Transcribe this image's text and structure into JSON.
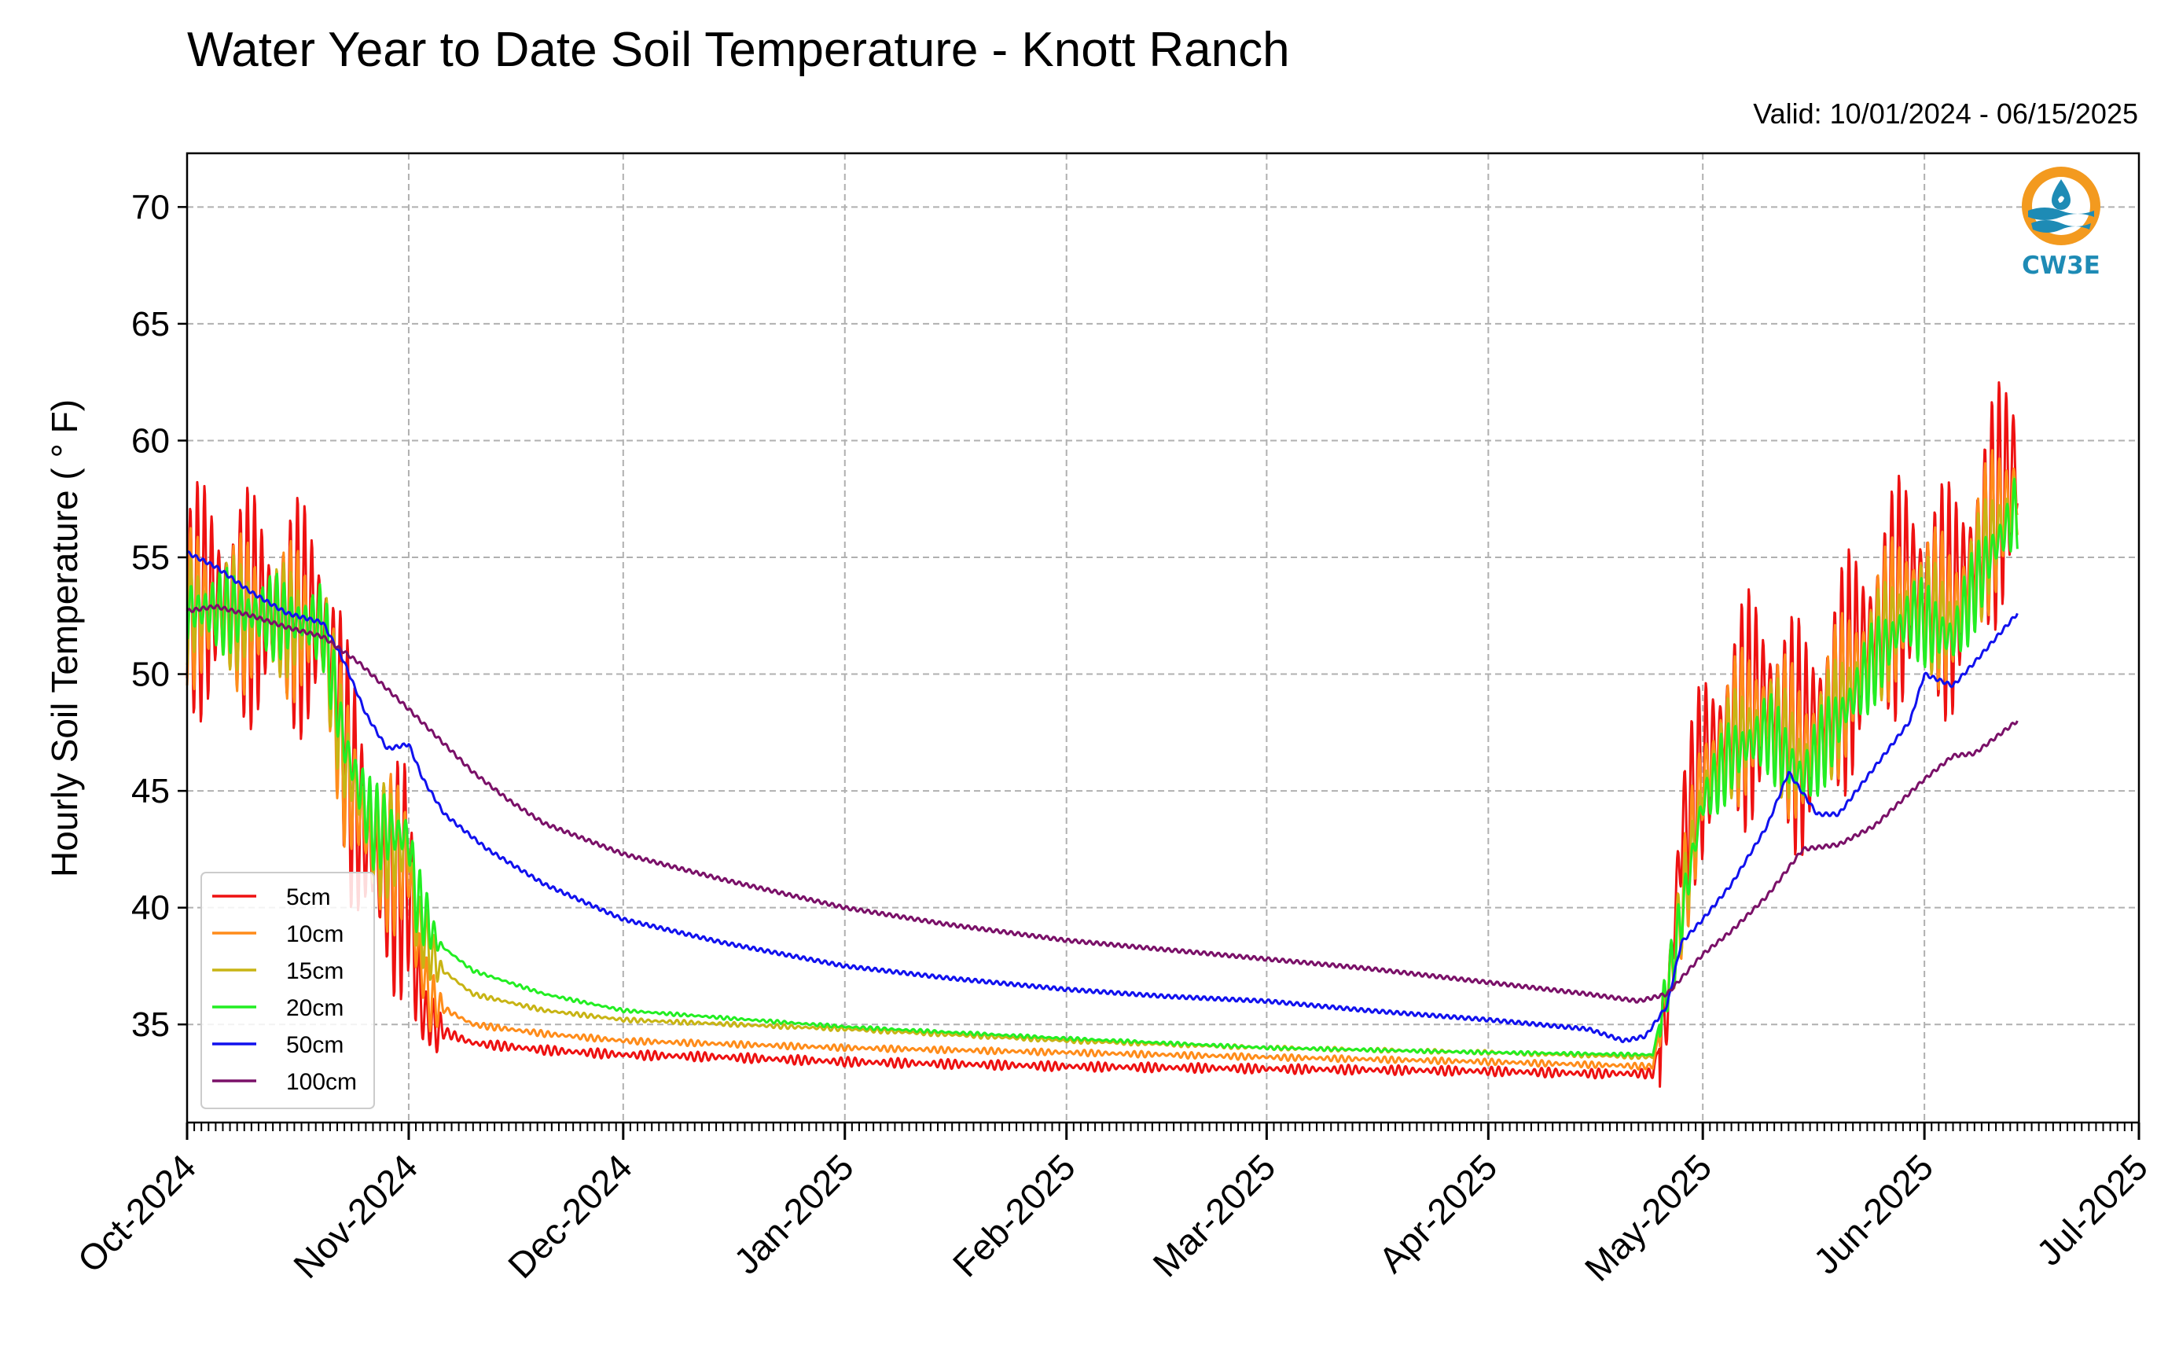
{
  "chart_data": {
    "type": "line",
    "title": "Water Year to Date Soil Temperature - Knott Ranch",
    "subtitle": "Valid: 10/01/2024 - 06/15/2025",
    "ylabel": "Hourly Soil Temperature ( ° F)",
    "xlabel": "",
    "ylim": [
      30.8,
      72.3
    ],
    "xlim": [
      "2024-10-01",
      "2025-07-01"
    ],
    "x_ticks": [
      "Oct-2024",
      "Nov-2024",
      "Dec-2024",
      "Jan-2025",
      "Feb-2025",
      "Mar-2025",
      "Apr-2025",
      "May-2025",
      "Jun-2025",
      "Jul-2025"
    ],
    "y_ticks": [
      35,
      40,
      45,
      50,
      55,
      60,
      65,
      70
    ],
    "grid": true,
    "legend_position": "lower-left",
    "logo_text": "CW3E",
    "series": [
      {
        "name": "5cm",
        "color": "#ee1111",
        "points": [
          [
            "2024-10-01",
            53.0
          ],
          [
            "2024-10-05",
            53.3
          ],
          [
            "2024-10-10",
            52.8
          ],
          [
            "2024-10-15",
            52.5
          ],
          [
            "2024-10-20",
            52.2
          ],
          [
            "2024-10-22",
            49.5
          ],
          [
            "2024-10-24",
            45.0
          ],
          [
            "2024-10-26",
            43.0
          ],
          [
            "2024-10-28",
            41.5
          ],
          [
            "2024-10-30",
            41.0
          ],
          [
            "2024-11-01",
            41.5
          ],
          [
            "2024-11-02",
            37.5
          ],
          [
            "2024-11-03",
            35.5
          ],
          [
            "2024-11-05",
            34.8
          ],
          [
            "2024-11-10",
            34.2
          ],
          [
            "2024-11-20",
            33.9
          ],
          [
            "2024-12-01",
            33.7
          ],
          [
            "2024-12-15",
            33.6
          ],
          [
            "2025-01-01",
            33.4
          ],
          [
            "2025-02-01",
            33.2
          ],
          [
            "2025-03-01",
            33.1
          ],
          [
            "2025-04-01",
            33.0
          ],
          [
            "2025-04-15",
            32.9
          ],
          [
            "2025-04-24",
            32.9
          ],
          [
            "2025-04-26",
            35.5
          ],
          [
            "2025-04-28",
            43.0
          ],
          [
            "2025-05-01",
            46.0
          ],
          [
            "2025-05-05",
            48.0
          ],
          [
            "2025-05-10",
            49.0
          ],
          [
            "2025-05-15",
            47.0
          ],
          [
            "2025-05-20",
            49.5
          ],
          [
            "2025-05-25",
            52.0
          ],
          [
            "2025-05-30",
            54.0
          ],
          [
            "2025-06-05",
            53.0
          ],
          [
            "2025-06-10",
            56.5
          ],
          [
            "2025-06-14",
            59.0
          ]
        ],
        "swing": 10.5
      },
      {
        "name": "10cm",
        "color": "#ff8c1a",
        "points": [
          [
            "2024-10-01",
            52.8
          ],
          [
            "2024-10-10",
            52.5
          ],
          [
            "2024-10-20",
            52.0
          ],
          [
            "2024-10-23",
            46.0
          ],
          [
            "2024-10-27",
            42.5
          ],
          [
            "2024-11-01",
            42.0
          ],
          [
            "2024-11-02",
            38.5
          ],
          [
            "2024-11-04",
            36.0
          ],
          [
            "2024-11-10",
            35.0
          ],
          [
            "2024-11-20",
            34.6
          ],
          [
            "2024-12-01",
            34.3
          ],
          [
            "2025-01-01",
            34.0
          ],
          [
            "2025-02-01",
            33.8
          ],
          [
            "2025-03-01",
            33.6
          ],
          [
            "2025-04-01",
            33.4
          ],
          [
            "2025-04-24",
            33.2
          ],
          [
            "2025-04-27",
            38.0
          ],
          [
            "2025-05-01",
            45.5
          ],
          [
            "2025-05-05",
            47.5
          ],
          [
            "2025-05-10",
            48.5
          ],
          [
            "2025-05-15",
            46.5
          ],
          [
            "2025-05-20",
            49.0
          ],
          [
            "2025-05-25",
            51.5
          ],
          [
            "2025-05-30",
            53.5
          ],
          [
            "2025-06-05",
            52.5
          ],
          [
            "2025-06-10",
            56.0
          ],
          [
            "2025-06-14",
            58.0
          ]
        ],
        "swing": 7.0
      },
      {
        "name": "15cm",
        "color": "#c8b414",
        "points": [
          [
            "2024-10-01",
            52.8
          ],
          [
            "2024-10-10",
            52.5
          ],
          [
            "2024-10-20",
            52.0
          ],
          [
            "2024-10-23",
            46.5
          ],
          [
            "2024-10-27",
            43.0
          ],
          [
            "2024-11-01",
            42.5
          ],
          [
            "2024-11-02",
            39.5
          ],
          [
            "2024-11-05",
            37.5
          ],
          [
            "2024-11-10",
            36.3
          ],
          [
            "2024-11-20",
            35.6
          ],
          [
            "2024-12-01",
            35.2
          ],
          [
            "2025-01-01",
            34.8
          ],
          [
            "2025-02-01",
            34.3
          ],
          [
            "2025-03-01",
            34.0
          ],
          [
            "2025-04-01",
            33.8
          ],
          [
            "2025-04-24",
            33.6
          ],
          [
            "2025-04-27",
            38.0
          ],
          [
            "2025-05-01",
            45.0
          ],
          [
            "2025-05-05",
            47.0
          ],
          [
            "2025-05-10",
            48.0
          ],
          [
            "2025-05-15",
            46.0
          ],
          [
            "2025-05-20",
            48.5
          ],
          [
            "2025-05-25",
            51.0
          ],
          [
            "2025-05-30",
            53.0
          ],
          [
            "2025-06-05",
            52.0
          ],
          [
            "2025-06-10",
            55.5
          ],
          [
            "2025-06-14",
            57.5
          ]
        ],
        "swing": 5.0
      },
      {
        "name": "20cm",
        "color": "#22ee22",
        "points": [
          [
            "2024-10-01",
            52.8
          ],
          [
            "2024-10-10",
            52.6
          ],
          [
            "2024-10-20",
            52.1
          ],
          [
            "2024-10-23",
            47.0
          ],
          [
            "2024-10-27",
            43.5
          ],
          [
            "2024-11-01",
            43.0
          ],
          [
            "2024-11-02",
            40.5
          ],
          [
            "2024-11-05",
            38.5
          ],
          [
            "2024-11-10",
            37.3
          ],
          [
            "2024-11-20",
            36.3
          ],
          [
            "2024-12-01",
            35.6
          ],
          [
            "2025-01-01",
            34.9
          ],
          [
            "2025-02-01",
            34.4
          ],
          [
            "2025-03-01",
            34.0
          ],
          [
            "2025-04-01",
            33.8
          ],
          [
            "2025-04-24",
            33.7
          ],
          [
            "2025-04-27",
            38.0
          ],
          [
            "2025-05-01",
            44.5
          ],
          [
            "2025-05-05",
            46.5
          ],
          [
            "2025-05-10",
            47.5
          ],
          [
            "2025-05-15",
            45.5
          ],
          [
            "2025-05-20",
            48.0
          ],
          [
            "2025-05-25",
            50.5
          ],
          [
            "2025-05-30",
            52.5
          ],
          [
            "2025-06-05",
            51.5
          ],
          [
            "2025-06-10",
            55.0
          ],
          [
            "2025-06-14",
            57.0
          ]
        ],
        "swing": 3.8
      },
      {
        "name": "50cm",
        "color": "#1111ee",
        "points": [
          [
            "2024-10-01",
            55.2
          ],
          [
            "2024-10-05",
            54.6
          ],
          [
            "2024-10-10",
            53.5
          ],
          [
            "2024-10-15",
            52.6
          ],
          [
            "2024-10-20",
            52.2
          ],
          [
            "2024-10-23",
            50.5
          ],
          [
            "2024-10-26",
            48.3
          ],
          [
            "2024-10-29",
            46.8
          ],
          [
            "2024-11-01",
            47.0
          ],
          [
            "2024-11-03",
            45.5
          ],
          [
            "2024-11-06",
            44.0
          ],
          [
            "2024-11-12",
            42.5
          ],
          [
            "2024-11-20",
            41.0
          ],
          [
            "2024-12-01",
            39.5
          ],
          [
            "2024-12-15",
            38.5
          ],
          [
            "2025-01-01",
            37.5
          ],
          [
            "2025-01-15",
            37.0
          ],
          [
            "2025-02-01",
            36.5
          ],
          [
            "2025-02-15",
            36.2
          ],
          [
            "2025-03-01",
            36.0
          ],
          [
            "2025-03-15",
            35.6
          ],
          [
            "2025-04-01",
            35.2
          ],
          [
            "2025-04-15",
            34.8
          ],
          [
            "2025-04-20",
            34.3
          ],
          [
            "2025-04-23",
            34.5
          ],
          [
            "2025-04-26",
            35.8
          ],
          [
            "2025-04-28",
            38.5
          ],
          [
            "2025-05-01",
            39.5
          ],
          [
            "2025-05-05",
            41.0
          ],
          [
            "2025-05-10",
            43.5
          ],
          [
            "2025-05-13",
            45.8
          ],
          [
            "2025-05-17",
            44.0
          ],
          [
            "2025-05-20",
            44.0
          ],
          [
            "2025-05-25",
            46.0
          ],
          [
            "2025-05-30",
            48.0
          ],
          [
            "2025-06-01",
            50.0
          ],
          [
            "2025-06-05",
            49.5
          ],
          [
            "2025-06-08",
            50.5
          ],
          [
            "2025-06-14",
            52.6
          ]
        ],
        "swing": 0
      },
      {
        "name": "100cm",
        "color": "#7a1068",
        "points": [
          [
            "2024-10-01",
            52.7
          ],
          [
            "2024-10-05",
            52.9
          ],
          [
            "2024-10-10",
            52.5
          ],
          [
            "2024-10-15",
            52.0
          ],
          [
            "2024-10-20",
            51.6
          ],
          [
            "2024-10-25",
            50.5
          ],
          [
            "2024-11-01",
            48.5
          ],
          [
            "2024-11-05",
            47.3
          ],
          [
            "2024-11-10",
            45.8
          ],
          [
            "2024-11-15",
            44.6
          ],
          [
            "2024-11-20",
            43.6
          ],
          [
            "2024-12-01",
            42.3
          ],
          [
            "2024-12-15",
            41.2
          ],
          [
            "2025-01-01",
            40.0
          ],
          [
            "2025-01-15",
            39.3
          ],
          [
            "2025-02-01",
            38.6
          ],
          [
            "2025-02-15",
            38.2
          ],
          [
            "2025-03-01",
            37.8
          ],
          [
            "2025-03-15",
            37.4
          ],
          [
            "2025-04-01",
            36.8
          ],
          [
            "2025-04-15",
            36.3
          ],
          [
            "2025-04-22",
            36.0
          ],
          [
            "2025-04-26",
            36.3
          ],
          [
            "2025-05-01",
            38.0
          ],
          [
            "2025-05-05",
            39.0
          ],
          [
            "2025-05-10",
            40.5
          ],
          [
            "2025-05-15",
            42.5
          ],
          [
            "2025-05-20",
            42.7
          ],
          [
            "2025-05-25",
            43.5
          ],
          [
            "2025-06-01",
            45.5
          ],
          [
            "2025-06-05",
            46.5
          ],
          [
            "2025-06-08",
            46.6
          ],
          [
            "2025-06-14",
            48.0
          ]
        ],
        "swing": 0
      }
    ]
  }
}
